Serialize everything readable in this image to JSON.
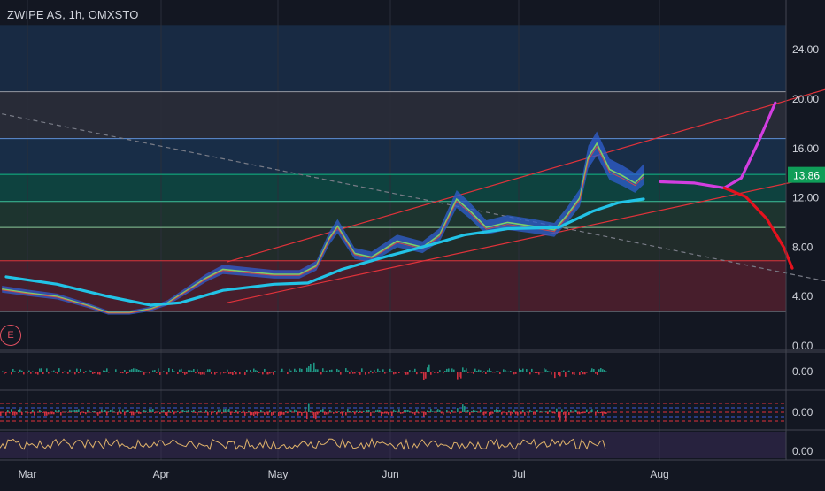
{
  "header": {
    "title": "ZWIPE AS, 1h, OMXSTO"
  },
  "badge": {
    "label": "E"
  },
  "price_axis": {
    "ticks": [
      "24.00",
      "20.00",
      "16.00",
      "12.00",
      "8.00",
      "4.00",
      "0.00"
    ],
    "last_price": "13.86"
  },
  "time_axis": {
    "labels": [
      "Mar",
      "Apr",
      "May",
      "Jun",
      "Jul",
      "Aug"
    ]
  },
  "indicator_axes": {
    "pane1": "0.00",
    "pane2": "0.00",
    "pane3": "0.00"
  },
  "colors": {
    "background": "#131722",
    "moving_average": "#22c3e6",
    "channel": "#e0323a",
    "bull_projection": "#d23ee0",
    "bear_projection": "#e5121e",
    "last_price_label": "#0f9d58",
    "text": "#d1d4dc"
  },
  "chart_data": {
    "type": "line",
    "title": "ZWIPE AS, 1h, OMXSTO",
    "x_labels": [
      "Mar",
      "Apr",
      "May",
      "Jun",
      "Jul",
      "Aug"
    ],
    "ylim": [
      0,
      26
    ],
    "last_price": 13.86,
    "horizontal_levels": [
      20.6,
      16.8,
      13.9,
      11.7,
      9.6,
      6.9,
      2.8
    ],
    "series": [
      {
        "key": "price",
        "values": [
          [
            "2020-02-24",
            4.6
          ],
          [
            "2020-03-01",
            4.3
          ],
          [
            "2020-03-08",
            4.0
          ],
          [
            "2020-03-15",
            3.3
          ],
          [
            "2020-03-20",
            2.7
          ],
          [
            "2020-03-25",
            2.7
          ],
          [
            "2020-03-30",
            3.0
          ],
          [
            "2020-04-03",
            3.5
          ],
          [
            "2020-04-08",
            4.6
          ],
          [
            "2020-04-12",
            5.5
          ],
          [
            "2020-04-16",
            6.2
          ],
          [
            "2020-04-22",
            6.0
          ],
          [
            "2020-04-28",
            5.8
          ],
          [
            "2020-05-04",
            5.8
          ],
          [
            "2020-05-08",
            6.5
          ],
          [
            "2020-05-11",
            8.7
          ],
          [
            "2020-05-13",
            9.7
          ],
          [
            "2020-05-17",
            7.5
          ],
          [
            "2020-05-21",
            7.2
          ],
          [
            "2020-05-27",
            8.5
          ],
          [
            "2020-06-02",
            8.0
          ],
          [
            "2020-06-06",
            9.0
          ],
          [
            "2020-06-10",
            11.9
          ],
          [
            "2020-06-13",
            11.0
          ],
          [
            "2020-06-17",
            9.6
          ],
          [
            "2020-06-22",
            10.0
          ],
          [
            "2020-06-28",
            9.7
          ],
          [
            "2020-07-03",
            9.4
          ],
          [
            "2020-07-06",
            10.6
          ],
          [
            "2020-07-09",
            12.0
          ],
          [
            "2020-07-11",
            15.3
          ],
          [
            "2020-07-13",
            16.4
          ],
          [
            "2020-07-16",
            14.3
          ],
          [
            "2020-07-19",
            13.8
          ],
          [
            "2020-07-22",
            13.2
          ],
          [
            "2020-07-24",
            13.9
          ]
        ]
      },
      {
        "key": "moving_average",
        "values": [
          [
            "2020-02-25",
            5.6
          ],
          [
            "2020-03-08",
            5.0
          ],
          [
            "2020-03-20",
            4.0
          ],
          [
            "2020-03-30",
            3.3
          ],
          [
            "2020-04-06",
            3.5
          ],
          [
            "2020-04-16",
            4.5
          ],
          [
            "2020-04-28",
            5.0
          ],
          [
            "2020-05-06",
            5.1
          ],
          [
            "2020-05-14",
            6.2
          ],
          [
            "2020-05-24",
            7.2
          ],
          [
            "2020-06-04",
            8.2
          ],
          [
            "2020-06-12",
            9.0
          ],
          [
            "2020-06-22",
            9.5
          ],
          [
            "2020-07-04",
            9.6
          ],
          [
            "2020-07-12",
            10.9
          ],
          [
            "2020-07-18",
            11.6
          ],
          [
            "2020-07-24",
            11.9
          ]
        ]
      },
      {
        "key": "bull_projection",
        "values": [
          [
            "2020-07-28",
            13.3
          ],
          [
            "2020-08-05",
            13.2
          ],
          [
            "2020-08-12",
            12.8
          ],
          [
            "2020-08-16",
            13.6
          ],
          [
            "2020-08-20",
            16.5
          ],
          [
            "2020-08-24",
            19.7
          ]
        ]
      },
      {
        "key": "bear_projection",
        "values": [
          [
            "2020-08-12",
            12.8
          ],
          [
            "2020-08-17",
            12.1
          ],
          [
            "2020-08-22",
            10.3
          ],
          [
            "2020-08-26",
            8.0
          ],
          [
            "2020-08-28",
            6.3
          ]
        ]
      },
      {
        "key": "channel_upper",
        "values": [
          [
            "2020-04-17",
            6.8
          ],
          [
            "2020-09-07",
            21.0
          ]
        ]
      },
      {
        "key": "channel_lower",
        "values": [
          [
            "2020-04-17",
            3.5
          ],
          [
            "2020-09-07",
            14.0
          ]
        ]
      },
      {
        "key": "downtrend",
        "values": [
          [
            "2020-02-24",
            18.8
          ],
          [
            "2020-09-07",
            5.1
          ]
        ]
      }
    ]
  }
}
